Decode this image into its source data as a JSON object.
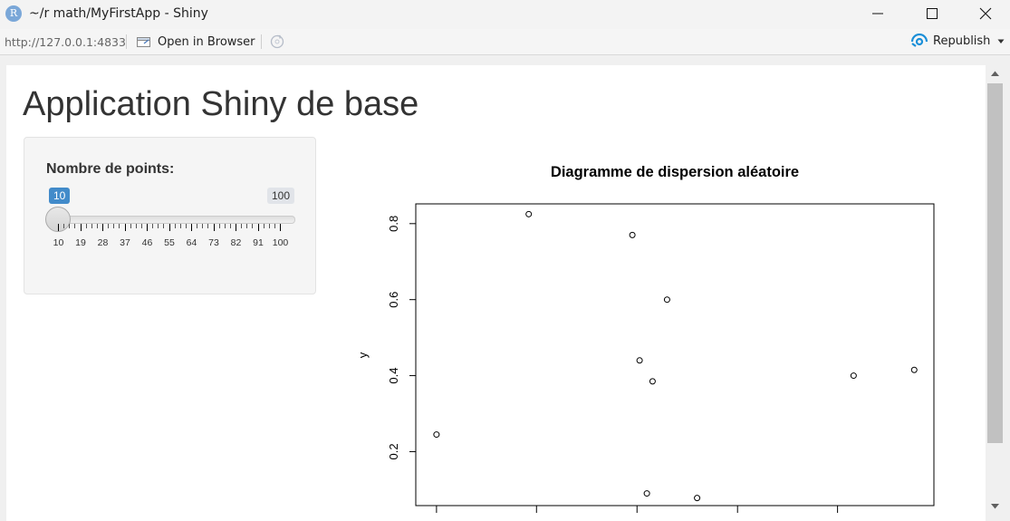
{
  "window": {
    "title": "~/r math/MyFirstApp - Shiny",
    "app_icon_letter": "R"
  },
  "toolbar": {
    "url": "http://127.0.0.1:4833",
    "open_in_browser": "Open in Browser",
    "republish": "Republish"
  },
  "app": {
    "title": "Application Shiny de base",
    "slider": {
      "label": "Nombre de points:",
      "value": "10",
      "max_label": "100",
      "tick_labels": [
        "10",
        "19",
        "28",
        "37",
        "46",
        "55",
        "64",
        "73",
        "82",
        "91",
        "100"
      ]
    }
  },
  "colors": {
    "accent": "#428bca",
    "republish_icon": "#1a8fd8"
  },
  "chart_data": {
    "type": "scatter",
    "title": "Diagramme de dispersion aléatoire",
    "xlabel": "",
    "ylabel": "y",
    "ylim": [
      0.058,
      0.852
    ],
    "y_ticks": [
      0.2,
      0.4,
      0.6,
      0.8
    ],
    "y_tick_labels": [
      "0.2",
      "0.4",
      "0.6",
      "0.8"
    ],
    "xlim": [
      0.0,
      1.0
    ],
    "grid": false,
    "points": [
      {
        "x": 0.04,
        "y": 0.245
      },
      {
        "x": 0.218,
        "y": 0.825
      },
      {
        "x": 0.418,
        "y": 0.77
      },
      {
        "x": 0.432,
        "y": 0.44
      },
      {
        "x": 0.446,
        "y": 0.09
      },
      {
        "x": 0.457,
        "y": 0.385
      },
      {
        "x": 0.485,
        "y": 0.6
      },
      {
        "x": 0.543,
        "y": 0.078
      },
      {
        "x": 0.845,
        "y": 0.4
      },
      {
        "x": 0.962,
        "y": 0.415
      }
    ]
  }
}
